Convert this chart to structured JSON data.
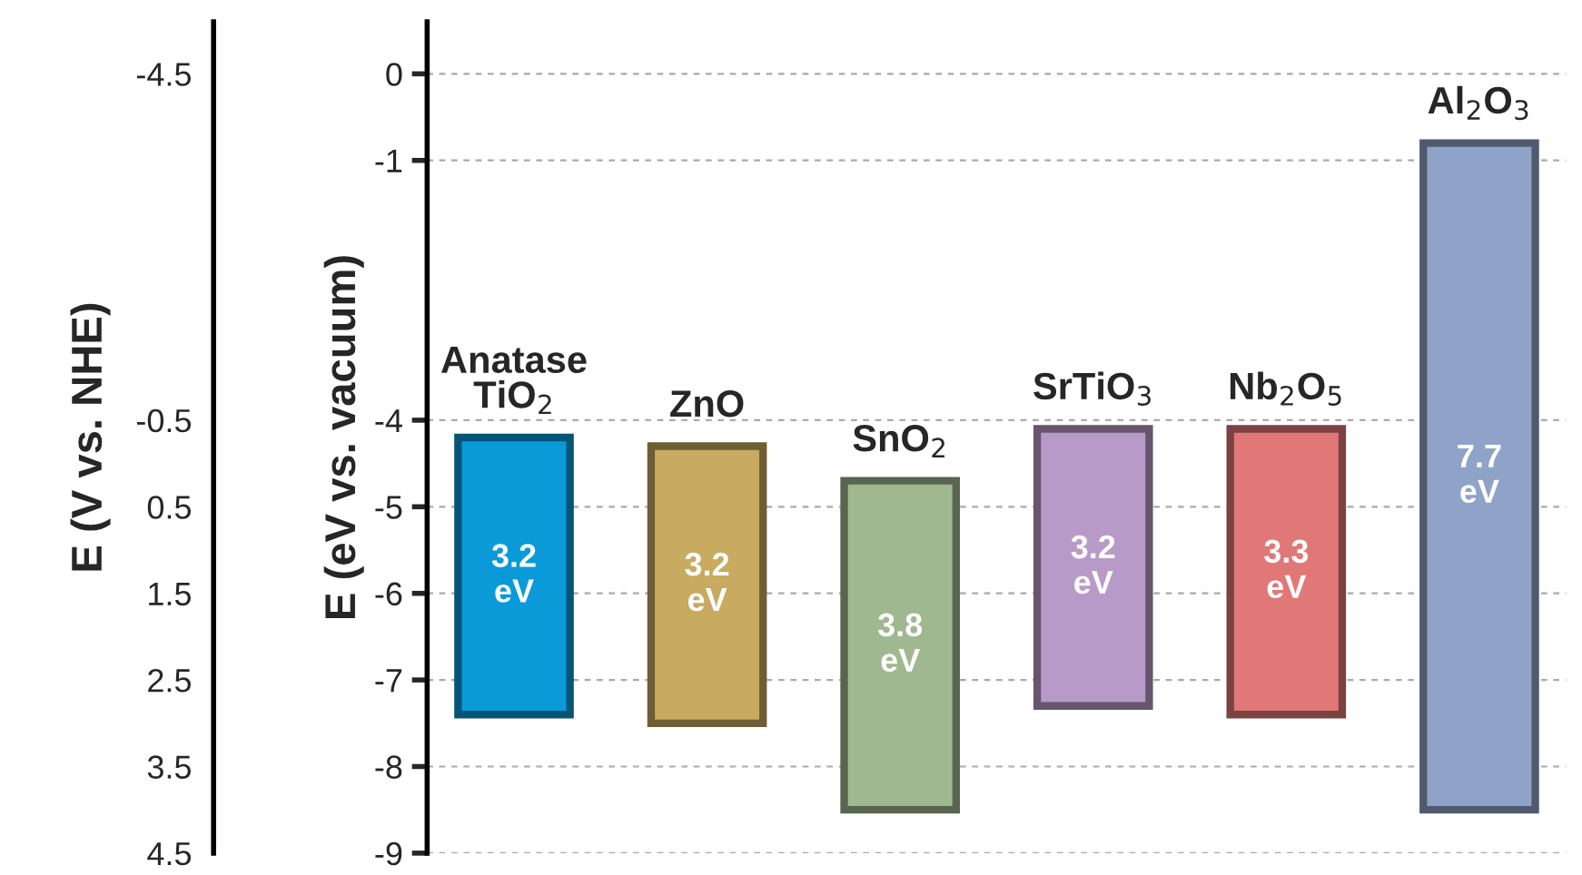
{
  "chart_data": {
    "type": "bar",
    "categories": [
      "Anatase\nTiO$_{2}$",
      "ZnO",
      "SnO$_{2}$",
      "SrTiO$_{3}$",
      "Nb$_{2}$O$_{5}$",
      "Al$_{2}$O$_{3}$"
    ],
    "base": [
      -7.4,
      -7.5,
      -8.5,
      -7.3,
      -7.4,
      -8.5
    ],
    "values": [
      3.2,
      3.2,
      3.8,
      3.2,
      3.3,
      7.7
    ],
    "value_labels": [
      "3.2\neV",
      "3.2\neV",
      "3.8\neV",
      "3.2\neV",
      "3.3\neV",
      "7.7\neV"
    ],
    "colors": [
      "#0a9ad8",
      "#c8aa60",
      "#a0b890",
      "#b89ac8",
      "#e07878",
      "#8fa3c8"
    ],
    "ylabel": "E (eV vs. vacuum)",
    "y2label": "E (V vs. NHE)",
    "ylim": [
      -9,
      0.6
    ],
    "yticks": [
      0,
      -1,
      -4,
      -5,
      -6,
      -7,
      -8,
      -9
    ],
    "y2lim": [
      4.5,
      -5.1
    ],
    "y2ticks": [
      -4.5,
      -0.5,
      0.5,
      1.5,
      2.5,
      3.5,
      4.5
    ],
    "grid": "y"
  }
}
